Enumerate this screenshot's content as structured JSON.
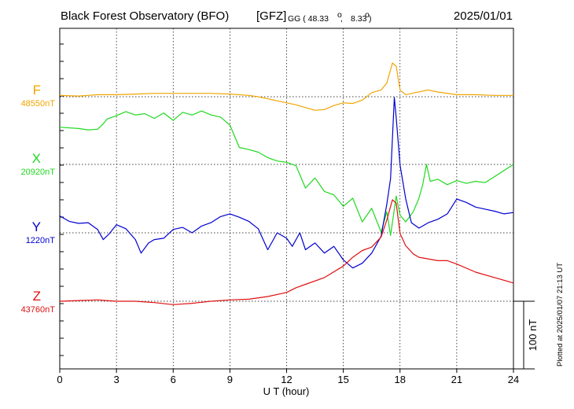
{
  "header": {
    "title": "Black Forest Observatory (BFO)",
    "gfz": "[GFZ]",
    "coords_prefix": "GG ( 48.33",
    "coords_sep": ",",
    "coords_lon": "8.33",
    "deg_close": ")",
    "date": "2025/01/01"
  },
  "chart_data": {
    "type": "line",
    "xlabel": "U T (hour)",
    "xlim": [
      0,
      24
    ],
    "xticks": [
      0,
      3,
      6,
      9,
      12,
      15,
      18,
      21,
      24
    ],
    "xtick_labels": [
      "0",
      "3",
      "6",
      "9",
      "12",
      "15",
      "18",
      "21",
      "24"
    ],
    "y_unit": "nT",
    "scale_bar_label": "100 nT",
    "scale_bar_nT": 100,
    "grid": true,
    "plotted_at": "Plotted at 2025/01/07 21:13 UT",
    "series": [
      {
        "name": "F",
        "base_label": "48550nT",
        "baseline_nT": 48550,
        "color": "#f0a500",
        "points": [
          [
            0,
            48552
          ],
          [
            1,
            48551
          ],
          [
            1.5,
            48552
          ],
          [
            2,
            48553
          ],
          [
            3,
            48553
          ],
          [
            4,
            48554
          ],
          [
            5,
            48555
          ],
          [
            6,
            48555
          ],
          [
            7,
            48555
          ],
          [
            8,
            48555
          ],
          [
            9,
            48554
          ],
          [
            10,
            48552
          ],
          [
            10.5,
            48550
          ],
          [
            11,
            48547
          ],
          [
            11.5,
            48544
          ],
          [
            12,
            48541
          ],
          [
            12.5,
            48538
          ],
          [
            13,
            48534
          ],
          [
            13.5,
            48530
          ],
          [
            14,
            48531
          ],
          [
            14.5,
            48537
          ],
          [
            15,
            48541
          ],
          [
            15.5,
            48540
          ],
          [
            16,
            48545
          ],
          [
            16.5,
            48556
          ],
          [
            17,
            48560
          ],
          [
            17.3,
            48570
          ],
          [
            17.6,
            48600
          ],
          [
            17.8,
            48595
          ],
          [
            18,
            48560
          ],
          [
            18.3,
            48553
          ],
          [
            18.8,
            48556
          ],
          [
            19.5,
            48560
          ],
          [
            20,
            48557
          ],
          [
            21,
            48553
          ],
          [
            22,
            48553
          ],
          [
            23,
            48552
          ],
          [
            24,
            48552
          ]
        ]
      },
      {
        "name": "X",
        "base_label": "20920nT",
        "baseline_nT": 20920,
        "color": "#20d820",
        "points": [
          [
            0,
            20975
          ],
          [
            1,
            20973
          ],
          [
            1.5,
            20971
          ],
          [
            2,
            20972
          ],
          [
            2.3,
            20980
          ],
          [
            2.5,
            20987
          ],
          [
            3,
            20992
          ],
          [
            3.5,
            20998
          ],
          [
            4,
            20993
          ],
          [
            4.5,
            20995
          ],
          [
            5,
            20988
          ],
          [
            5.5,
            20996
          ],
          [
            6,
            20985
          ],
          [
            6.5,
            20997
          ],
          [
            7,
            20993
          ],
          [
            7.5,
            20999
          ],
          [
            8,
            20993
          ],
          [
            8.5,
            20990
          ],
          [
            9,
            20978
          ],
          [
            9.5,
            20945
          ],
          [
            10,
            20942
          ],
          [
            10.5,
            20938
          ],
          [
            11,
            20930
          ],
          [
            11.5,
            20925
          ],
          [
            12,
            20923
          ],
          [
            12.5,
            20918
          ],
          [
            13,
            20885
          ],
          [
            13.5,
            20900
          ],
          [
            14,
            20880
          ],
          [
            14.5,
            20875
          ],
          [
            15,
            20858
          ],
          [
            15.5,
            20870
          ],
          [
            16,
            20835
          ],
          [
            16.5,
            20855
          ],
          [
            17,
            20820
          ],
          [
            17.3,
            20850
          ],
          [
            17.5,
            20815
          ],
          [
            17.8,
            20873
          ],
          [
            18,
            20845
          ],
          [
            18.3,
            20835
          ],
          [
            18.7,
            20850
          ],
          [
            19,
            20870
          ],
          [
            19.2,
            20890
          ],
          [
            19.4,
            20920
          ],
          [
            19.6,
            20895
          ],
          [
            20,
            20898
          ],
          [
            20.5,
            20890
          ],
          [
            21,
            20896
          ],
          [
            21.5,
            20892
          ],
          [
            22,
            20895
          ],
          [
            22.5,
            20893
          ],
          [
            23,
            20902
          ],
          [
            24,
            20920
          ]
        ]
      },
      {
        "name": "Y",
        "base_label": "1220nT",
        "baseline_nT": 1220,
        "color": "#0000d0",
        "points": [
          [
            0,
            1245
          ],
          [
            0.5,
            1237
          ],
          [
            1,
            1234
          ],
          [
            1.5,
            1235
          ],
          [
            2,
            1225
          ],
          [
            2.3,
            1210
          ],
          [
            2.6,
            1218
          ],
          [
            3,
            1232
          ],
          [
            3.5,
            1226
          ],
          [
            4,
            1210
          ],
          [
            4.3,
            1190
          ],
          [
            4.7,
            1205
          ],
          [
            5,
            1210
          ],
          [
            5.5,
            1212
          ],
          [
            6,
            1225
          ],
          [
            6.5,
            1228
          ],
          [
            7,
            1220
          ],
          [
            7.5,
            1230
          ],
          [
            8,
            1235
          ],
          [
            8.5,
            1244
          ],
          [
            9,
            1248
          ],
          [
            9.5,
            1243
          ],
          [
            10,
            1237
          ],
          [
            10.5,
            1226
          ],
          [
            11,
            1195
          ],
          [
            11.5,
            1220
          ],
          [
            12,
            1212
          ],
          [
            12.3,
            1200
          ],
          [
            12.7,
            1220
          ],
          [
            13,
            1195
          ],
          [
            13.5,
            1205
          ],
          [
            14,
            1190
          ],
          [
            14.5,
            1200
          ],
          [
            15,
            1180
          ],
          [
            15.5,
            1168
          ],
          [
            16,
            1175
          ],
          [
            16.5,
            1190
          ],
          [
            17,
            1215
          ],
          [
            17.3,
            1262
          ],
          [
            17.5,
            1300
          ],
          [
            17.7,
            1420
          ],
          [
            17.8,
            1390
          ],
          [
            18,
            1320
          ],
          [
            18.3,
            1270
          ],
          [
            18.6,
            1235
          ],
          [
            19,
            1227
          ],
          [
            19.5,
            1235
          ],
          [
            20,
            1240
          ],
          [
            20.5,
            1248
          ],
          [
            21,
            1270
          ],
          [
            21.5,
            1265
          ],
          [
            22,
            1258
          ],
          [
            22.5,
            1255
          ],
          [
            23,
            1252
          ],
          [
            23.5,
            1248
          ],
          [
            24,
            1250
          ]
        ]
      },
      {
        "name": "Z",
        "base_label": "43760nT",
        "baseline_nT": 43760,
        "color": "#e01010",
        "points": [
          [
            0,
            43760
          ],
          [
            1,
            43761
          ],
          [
            2,
            43762
          ],
          [
            3,
            43760
          ],
          [
            4,
            43760
          ],
          [
            5,
            43758
          ],
          [
            6,
            43755
          ],
          [
            7,
            43757
          ],
          [
            8,
            43760
          ],
          [
            9,
            43762
          ],
          [
            10,
            43763
          ],
          [
            11,
            43767
          ],
          [
            12,
            43773
          ],
          [
            12.5,
            43780
          ],
          [
            13,
            43785
          ],
          [
            14,
            43795
          ],
          [
            15,
            43812
          ],
          [
            15.5,
            43825
          ],
          [
            16,
            43835
          ],
          [
            16.5,
            43840
          ],
          [
            17,
            43855
          ],
          [
            17.3,
            43880
          ],
          [
            17.6,
            43910
          ],
          [
            17.8,
            43905
          ],
          [
            18,
            43860
          ],
          [
            18.3,
            43842
          ],
          [
            18.7,
            43830
          ],
          [
            19,
            43825
          ],
          [
            20,
            43820
          ],
          [
            20.5,
            43820
          ],
          [
            21,
            43815
          ],
          [
            22,
            43803
          ],
          [
            23,
            43795
          ],
          [
            24,
            43787
          ]
        ]
      }
    ]
  }
}
